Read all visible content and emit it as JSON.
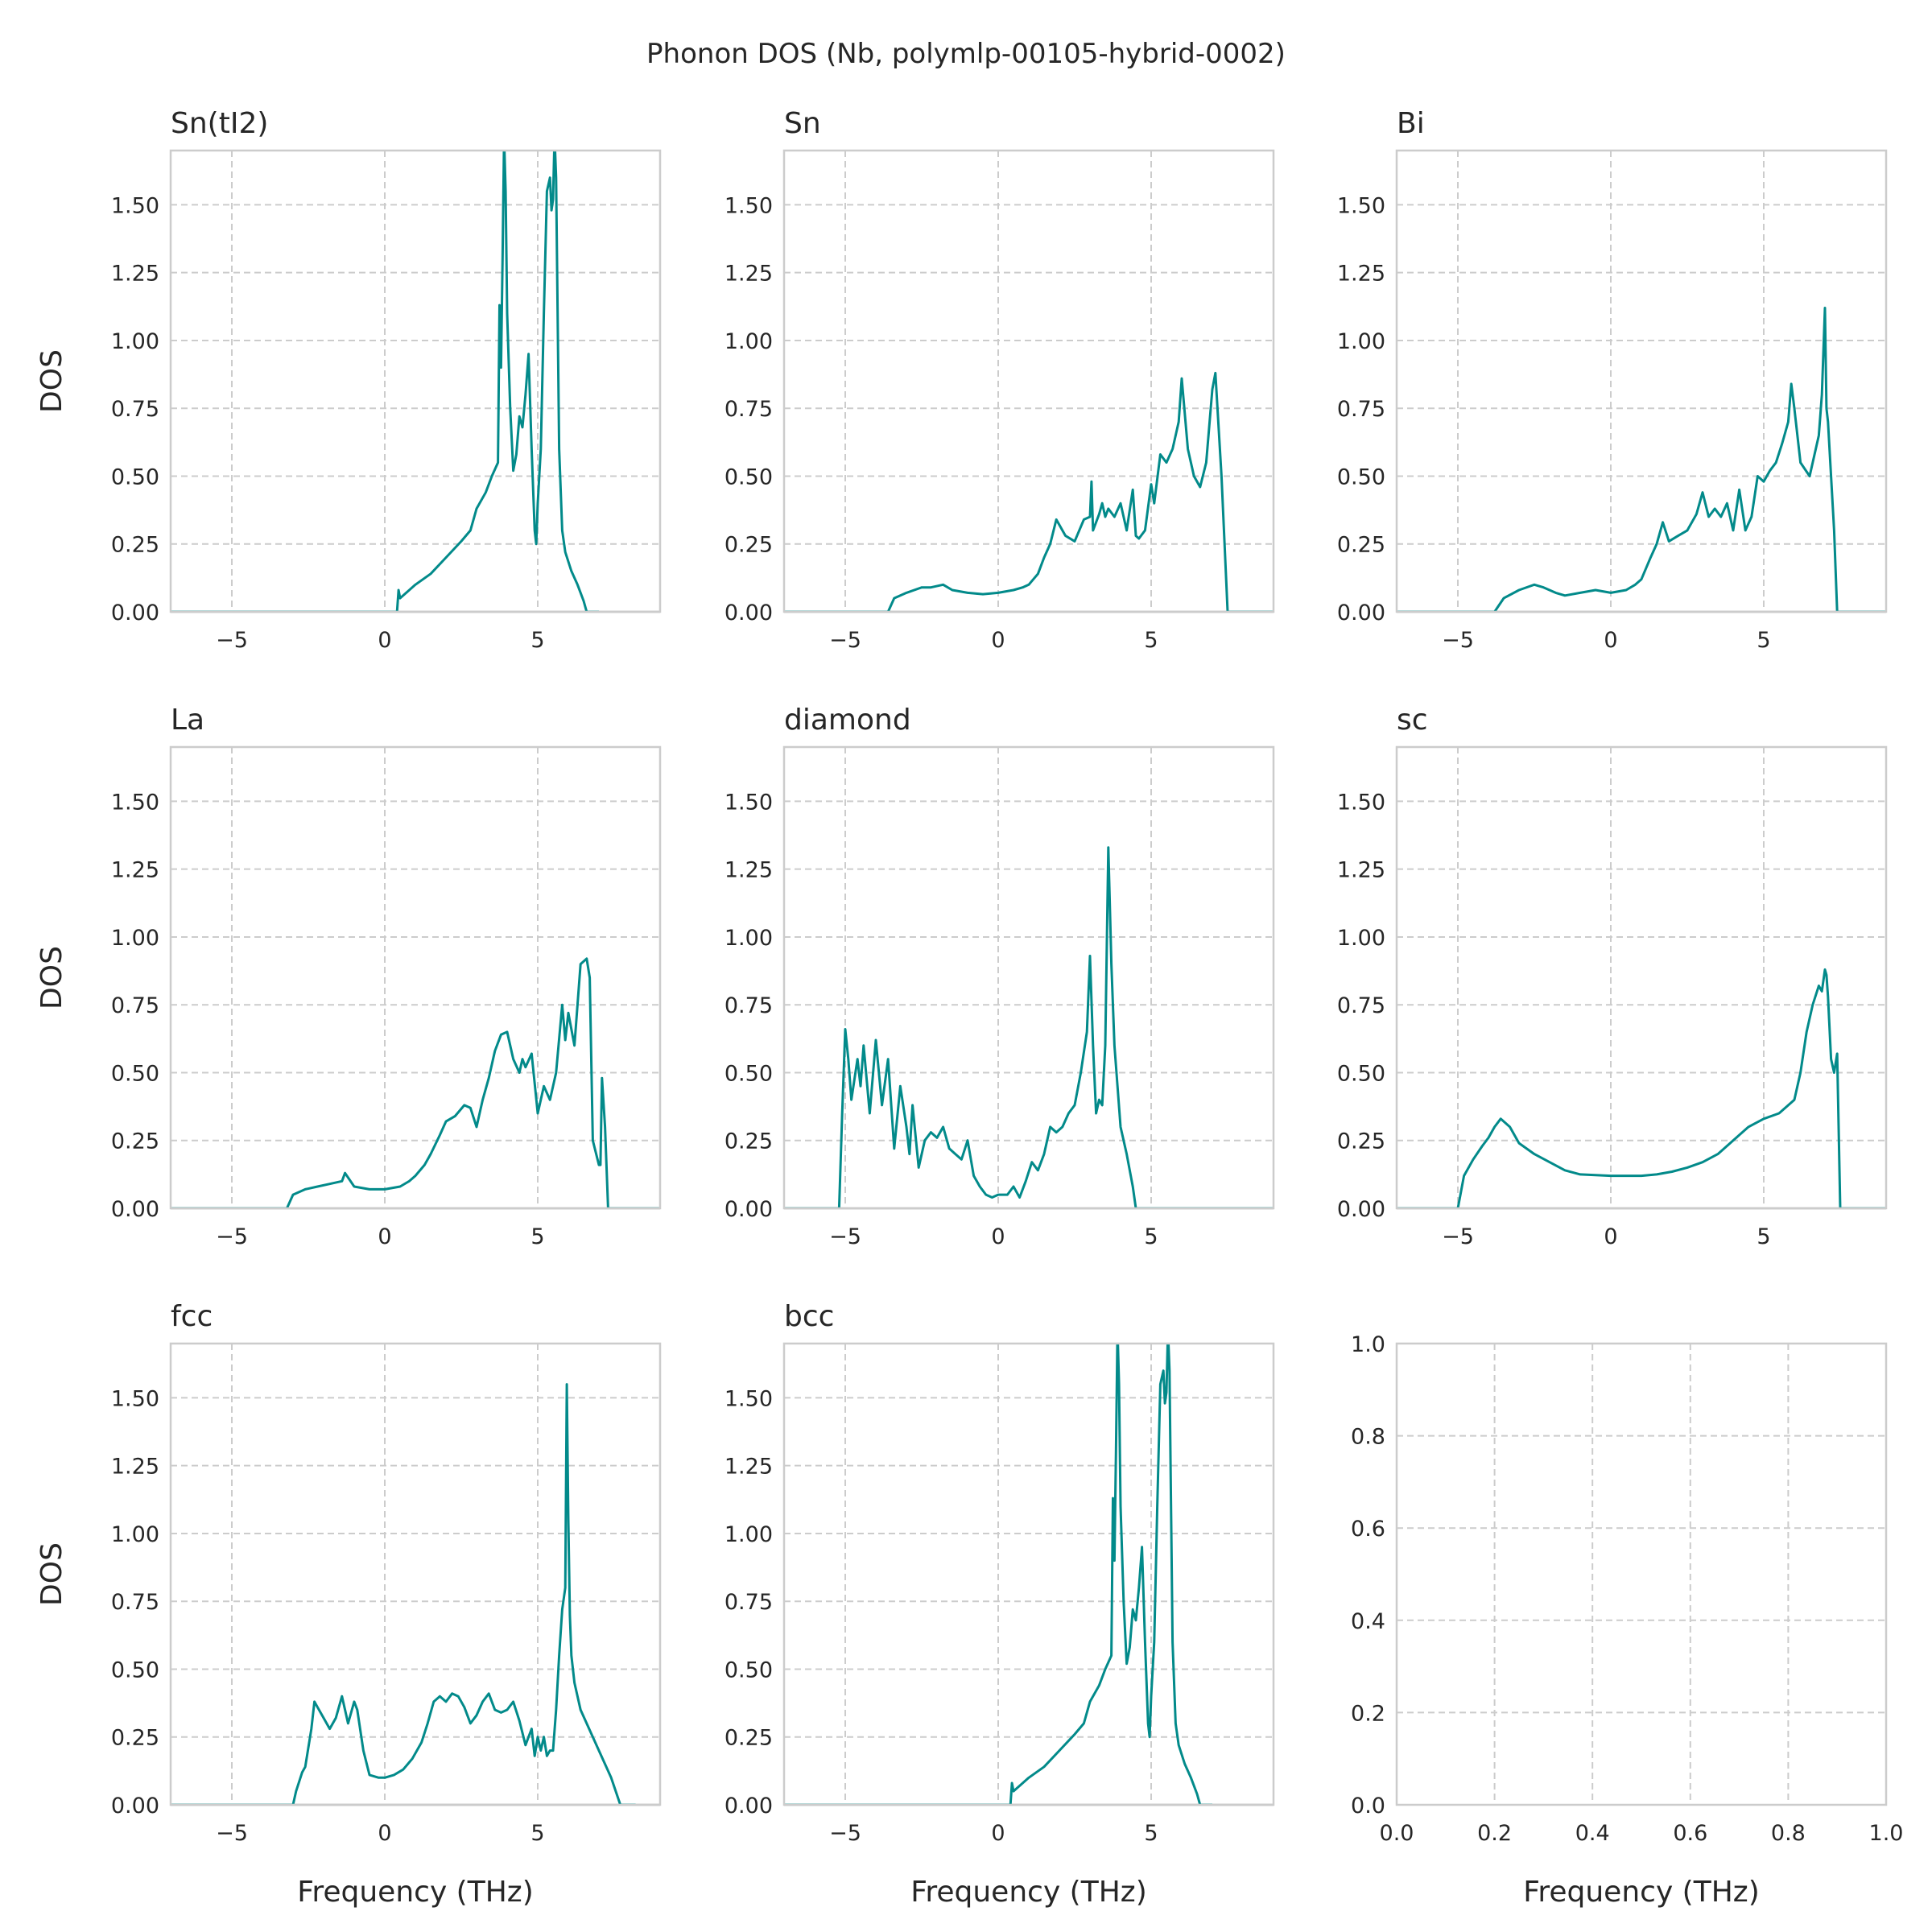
{
  "chart_data": {
    "type": "line",
    "title": "Phonon DOS (Nb, polymlp-00105-hybrid-0002)",
    "xlabel": "Frequency (THz)",
    "ylabel": "DOS",
    "grid": true,
    "color": "#028a8a",
    "panels": [
      {
        "title": "Sn(tI2)",
        "xlim": [
          -7,
          9
        ],
        "ylim": [
          0,
          1.7
        ],
        "xticks": [
          "−5",
          "0",
          "5"
        ],
        "yticks": [
          "0.00",
          "0.25",
          "0.50",
          "0.75",
          "1.00",
          "1.25",
          "1.50"
        ],
        "x": [
          -7,
          0,
          0.4,
          0.45,
          0.5,
          0.6,
          1.0,
          1.5,
          2.0,
          2.5,
          2.8,
          3.0,
          3.3,
          3.5,
          3.7,
          3.75,
          3.8,
          3.85,
          3.9,
          3.95,
          4.0,
          4.1,
          4.2,
          4.3,
          4.4,
          4.5,
          4.6,
          4.7,
          4.8,
          4.9,
          4.95,
          5.0,
          5.1,
          5.2,
          5.3,
          5.4,
          5.45,
          5.5,
          5.55,
          5.6,
          5.7,
          5.8,
          5.9,
          6.1,
          6.3,
          6.5,
          6.6,
          7.0
        ],
        "y": [
          0,
          0,
          0,
          0.08,
          0.05,
          0.06,
          0.1,
          0.14,
          0.2,
          0.26,
          0.3,
          0.38,
          0.44,
          0.5,
          0.55,
          1.13,
          0.9,
          1.3,
          1.75,
          1.55,
          1.1,
          0.75,
          0.52,
          0.58,
          0.72,
          0.68,
          0.8,
          0.95,
          0.6,
          0.3,
          0.25,
          0.4,
          0.6,
          1.1,
          1.55,
          1.6,
          1.48,
          1.52,
          1.75,
          1.6,
          0.6,
          0.3,
          0.22,
          0.15,
          0.1,
          0.04,
          0,
          0
        ]
      },
      {
        "title": "Sn",
        "xlim": [
          -7,
          9
        ],
        "ylim": [
          0,
          1.7
        ],
        "xticks": [
          "−5",
          "0",
          "5"
        ],
        "yticks": [
          "0.00",
          "0.25",
          "0.50",
          "0.75",
          "1.00",
          "1.25",
          "1.50"
        ],
        "x": [
          -7,
          -3.6,
          -3.4,
          -3.0,
          -2.5,
          -2.2,
          -1.8,
          -1.5,
          -1.0,
          -0.5,
          0,
          0.5,
          0.8,
          1.0,
          1.3,
          1.5,
          1.7,
          1.9,
          2.2,
          2.5,
          2.8,
          3.0,
          3.05,
          3.1,
          3.3,
          3.4,
          3.5,
          3.6,
          3.8,
          4.0,
          4.2,
          4.4,
          4.5,
          4.6,
          4.8,
          5.0,
          5.1,
          5.3,
          5.5,
          5.7,
          5.9,
          6.0,
          6.2,
          6.4,
          6.6,
          6.8,
          7.0,
          7.1,
          7.3,
          7.5,
          9
        ],
        "y": [
          0,
          0,
          0.05,
          0.07,
          0.09,
          0.09,
          0.1,
          0.08,
          0.07,
          0.065,
          0.07,
          0.08,
          0.09,
          0.1,
          0.14,
          0.2,
          0.25,
          0.34,
          0.28,
          0.26,
          0.34,
          0.35,
          0.48,
          0.3,
          0.36,
          0.4,
          0.35,
          0.38,
          0.35,
          0.4,
          0.3,
          0.45,
          0.28,
          0.27,
          0.3,
          0.47,
          0.4,
          0.58,
          0.55,
          0.6,
          0.7,
          0.86,
          0.6,
          0.5,
          0.46,
          0.55,
          0.82,
          0.88,
          0.5,
          0,
          0
        ]
      },
      {
        "title": "Bi",
        "xlim": [
          -7,
          9
        ],
        "ylim": [
          0,
          1.7
        ],
        "xticks": [
          "−5",
          "0",
          "5"
        ],
        "yticks": [
          "0.00",
          "0.25",
          "0.50",
          "0.75",
          "1.00",
          "1.25",
          "1.50"
        ],
        "x": [
          -7,
          -3.8,
          -3.5,
          -3.0,
          -2.5,
          -2.2,
          -1.8,
          -1.5,
          -1.0,
          -0.5,
          0,
          0.5,
          0.8,
          1.0,
          1.3,
          1.5,
          1.7,
          1.9,
          2.2,
          2.5,
          2.8,
          3.0,
          3.2,
          3.4,
          3.6,
          3.8,
          4.0,
          4.2,
          4.4,
          4.6,
          4.8,
          5.0,
          5.2,
          5.4,
          5.6,
          5.8,
          5.9,
          6.0,
          6.2,
          6.5,
          6.8,
          6.9,
          7.0,
          7.05,
          7.1,
          7.3,
          7.4,
          9
        ],
        "y": [
          0,
          0,
          0.05,
          0.08,
          0.1,
          0.09,
          0.07,
          0.06,
          0.07,
          0.08,
          0.07,
          0.08,
          0.1,
          0.12,
          0.2,
          0.25,
          0.33,
          0.26,
          0.28,
          0.3,
          0.36,
          0.44,
          0.35,
          0.38,
          0.35,
          0.4,
          0.3,
          0.45,
          0.3,
          0.35,
          0.5,
          0.48,
          0.52,
          0.55,
          0.62,
          0.7,
          0.84,
          0.75,
          0.55,
          0.5,
          0.65,
          0.8,
          1.12,
          0.75,
          0.7,
          0.3,
          0,
          0
        ]
      },
      {
        "title": "La",
        "xlim": [
          -7,
          9
        ],
        "ylim": [
          0,
          1.7
        ],
        "xticks": [
          "−5",
          "0",
          "5"
        ],
        "yticks": [
          "0.00",
          "0.25",
          "0.50",
          "0.75",
          "1.00",
          "1.25",
          "1.50"
        ],
        "x": [
          -7,
          -3.2,
          -3.0,
          -2.6,
          -2.2,
          -1.8,
          -1.4,
          -1.3,
          -1.0,
          -0.5,
          0,
          0.5,
          0.8,
          1.0,
          1.3,
          1.5,
          1.8,
          2.0,
          2.3,
          2.6,
          2.8,
          3.0,
          3.2,
          3.4,
          3.6,
          3.8,
          4.0,
          4.2,
          4.4,
          4.5,
          4.6,
          4.8,
          5.0,
          5.2,
          5.4,
          5.6,
          5.8,
          5.9,
          6.0,
          6.2,
          6.4,
          6.6,
          6.7,
          6.8,
          7.0,
          7.05,
          7.1,
          7.2,
          7.3,
          9
        ],
        "y": [
          0,
          0,
          0.05,
          0.07,
          0.08,
          0.09,
          0.1,
          0.13,
          0.08,
          0.07,
          0.07,
          0.08,
          0.1,
          0.12,
          0.16,
          0.2,
          0.27,
          0.32,
          0.34,
          0.38,
          0.37,
          0.3,
          0.4,
          0.48,
          0.58,
          0.64,
          0.65,
          0.55,
          0.5,
          0.55,
          0.52,
          0.57,
          0.35,
          0.45,
          0.4,
          0.5,
          0.75,
          0.62,
          0.72,
          0.6,
          0.9,
          0.92,
          0.85,
          0.25,
          0.16,
          0.16,
          0.48,
          0.3,
          0,
          0
        ]
      },
      {
        "title": "diamond",
        "xlim": [
          -7,
          9
        ],
        "ylim": [
          0,
          1.7
        ],
        "xticks": [
          "−5",
          "0",
          "5"
        ],
        "yticks": [
          "0.00",
          "0.25",
          "0.50",
          "0.75",
          "1.00",
          "1.25",
          "1.50"
        ],
        "x": [
          -7,
          -5.2,
          -5.1,
          -5.0,
          -4.9,
          -4.8,
          -4.6,
          -4.5,
          -4.4,
          -4.2,
          -4.0,
          -3.8,
          -3.6,
          -3.4,
          -3.2,
          -3.0,
          -2.9,
          -2.8,
          -2.6,
          -2.4,
          -2.2,
          -2.0,
          -1.8,
          -1.6,
          -1.4,
          -1.2,
          -1.0,
          -0.8,
          -0.6,
          -0.4,
          -0.2,
          0,
          0.3,
          0.5,
          0.7,
          0.9,
          1.1,
          1.3,
          1.5,
          1.7,
          1.9,
          2.1,
          2.3,
          2.5,
          2.7,
          2.9,
          3.0,
          3.1,
          3.2,
          3.3,
          3.4,
          3.5,
          3.6,
          3.7,
          3.8,
          3.9,
          4.0,
          4.2,
          4.4,
          4.5,
          9
        ],
        "y": [
          0,
          0,
          0.35,
          0.66,
          0.55,
          0.4,
          0.55,
          0.45,
          0.6,
          0.35,
          0.62,
          0.38,
          0.55,
          0.22,
          0.45,
          0.3,
          0.2,
          0.38,
          0.15,
          0.25,
          0.28,
          0.26,
          0.3,
          0.22,
          0.2,
          0.18,
          0.25,
          0.12,
          0.08,
          0.05,
          0.04,
          0.05,
          0.05,
          0.08,
          0.04,
          0.1,
          0.17,
          0.14,
          0.2,
          0.3,
          0.28,
          0.3,
          0.35,
          0.38,
          0.5,
          0.65,
          0.93,
          0.6,
          0.35,
          0.4,
          0.38,
          0.6,
          1.33,
          0.9,
          0.6,
          0.45,
          0.3,
          0.2,
          0.08,
          0,
          0
        ]
      },
      {
        "title": "sc",
        "xlim": [
          -7,
          9
        ],
        "ylim": [
          0,
          1.7
        ],
        "xticks": [
          "−5",
          "0",
          "5"
        ],
        "yticks": [
          "0.00",
          "0.25",
          "0.50",
          "0.75",
          "1.00",
          "1.25",
          "1.50"
        ],
        "x": [
          -7,
          -5.0,
          -4.9,
          -4.8,
          -4.5,
          -4.2,
          -4.0,
          -3.8,
          -3.6,
          -3.5,
          -3.3,
          -3.0,
          -2.5,
          -2.0,
          -1.5,
          -1.0,
          0,
          0.5,
          1.0,
          1.5,
          2.0,
          2.5,
          3.0,
          3.5,
          4.0,
          4.5,
          5.0,
          5.5,
          6.0,
          6.2,
          6.4,
          6.6,
          6.8,
          6.9,
          7.0,
          7.05,
          7.1,
          7.2,
          7.3,
          7.4,
          7.5,
          9
        ],
        "y": [
          0,
          0,
          0.06,
          0.12,
          0.18,
          0.23,
          0.26,
          0.3,
          0.33,
          0.32,
          0.3,
          0.24,
          0.2,
          0.17,
          0.14,
          0.125,
          0.12,
          0.12,
          0.12,
          0.125,
          0.135,
          0.15,
          0.17,
          0.2,
          0.25,
          0.3,
          0.33,
          0.35,
          0.4,
          0.5,
          0.65,
          0.75,
          0.82,
          0.8,
          0.88,
          0.86,
          0.78,
          0.55,
          0.5,
          0.57,
          0,
          0
        ]
      },
      {
        "title": "fcc",
        "xlim": [
          -7,
          9
        ],
        "ylim": [
          0,
          1.7
        ],
        "xticks": [
          "−5",
          "0",
          "5"
        ],
        "yticks": [
          "0.00",
          "0.25",
          "0.50",
          "0.75",
          "1.00",
          "1.25",
          "1.50"
        ],
        "x": [
          -7,
          -3.0,
          -2.9,
          -2.7,
          -2.6,
          -2.4,
          -2.3,
          -2.2,
          -2.0,
          -1.8,
          -1.6,
          -1.4,
          -1.3,
          -1.2,
          -1.0,
          -0.9,
          -0.7,
          -0.5,
          -0.2,
          0,
          0.3,
          0.6,
          0.9,
          1.2,
          1.4,
          1.6,
          1.8,
          2.0,
          2.2,
          2.4,
          2.6,
          2.8,
          3.0,
          3.2,
          3.4,
          3.6,
          3.8,
          4.0,
          4.2,
          4.4,
          4.6,
          4.8,
          4.9,
          5.0,
          5.1,
          5.2,
          5.3,
          5.4,
          5.5,
          5.6,
          5.7,
          5.8,
          5.9,
          5.95,
          6.0,
          6.05,
          6.1,
          6.2,
          6.4,
          6.6,
          7.0,
          7.4,
          7.7,
          8.2
        ],
        "y": [
          0,
          0,
          0.05,
          0.12,
          0.14,
          0.28,
          0.38,
          0.36,
          0.32,
          0.28,
          0.32,
          0.4,
          0.35,
          0.3,
          0.38,
          0.35,
          0.2,
          0.11,
          0.1,
          0.1,
          0.11,
          0.13,
          0.17,
          0.23,
          0.3,
          0.38,
          0.4,
          0.38,
          0.41,
          0.4,
          0.36,
          0.3,
          0.33,
          0.38,
          0.41,
          0.35,
          0.34,
          0.35,
          0.38,
          0.31,
          0.22,
          0.28,
          0.18,
          0.25,
          0.2,
          0.25,
          0.18,
          0.2,
          0.2,
          0.35,
          0.55,
          0.72,
          0.8,
          1.55,
          1.05,
          0.7,
          0.55,
          0.45,
          0.35,
          0.3,
          0.2,
          0.1,
          0,
          0
        ]
      },
      {
        "title": "bcc",
        "xlim": [
          -7,
          9
        ],
        "ylim": [
          0,
          1.7
        ],
        "xticks": [
          "−5",
          "0",
          "5"
        ],
        "yticks": [
          "0.00",
          "0.25",
          "0.50",
          "0.75",
          "1.00",
          "1.25",
          "1.50"
        ],
        "x": [
          -7,
          0,
          0.4,
          0.45,
          0.5,
          0.6,
          1.0,
          1.5,
          2.0,
          2.5,
          2.8,
          3.0,
          3.3,
          3.5,
          3.7,
          3.75,
          3.8,
          3.85,
          3.9,
          3.95,
          4.0,
          4.1,
          4.2,
          4.3,
          4.4,
          4.5,
          4.6,
          4.7,
          4.8,
          4.9,
          4.95,
          5.0,
          5.1,
          5.2,
          5.3,
          5.4,
          5.45,
          5.5,
          5.55,
          5.6,
          5.7,
          5.8,
          5.9,
          6.1,
          6.3,
          6.5,
          6.6,
          7.0
        ],
        "y": [
          0,
          0,
          0,
          0.08,
          0.05,
          0.06,
          0.1,
          0.14,
          0.2,
          0.26,
          0.3,
          0.38,
          0.44,
          0.5,
          0.55,
          1.13,
          0.9,
          1.3,
          1.75,
          1.55,
          1.1,
          0.75,
          0.52,
          0.58,
          0.72,
          0.68,
          0.8,
          0.95,
          0.6,
          0.3,
          0.25,
          0.4,
          0.6,
          1.1,
          1.55,
          1.6,
          1.48,
          1.52,
          1.75,
          1.6,
          0.6,
          0.3,
          0.22,
          0.15,
          0.1,
          0.04,
          0,
          0
        ]
      },
      {
        "title": "",
        "empty": true,
        "xlim": [
          0,
          1
        ],
        "ylim": [
          0,
          1
        ],
        "xticks": [
          "0.0",
          "0.2",
          "0.4",
          "0.6",
          "0.8",
          "1.0"
        ],
        "yticks": [
          "0.0",
          "0.2",
          "0.4",
          "0.6",
          "0.8",
          "1.0"
        ]
      }
    ]
  }
}
